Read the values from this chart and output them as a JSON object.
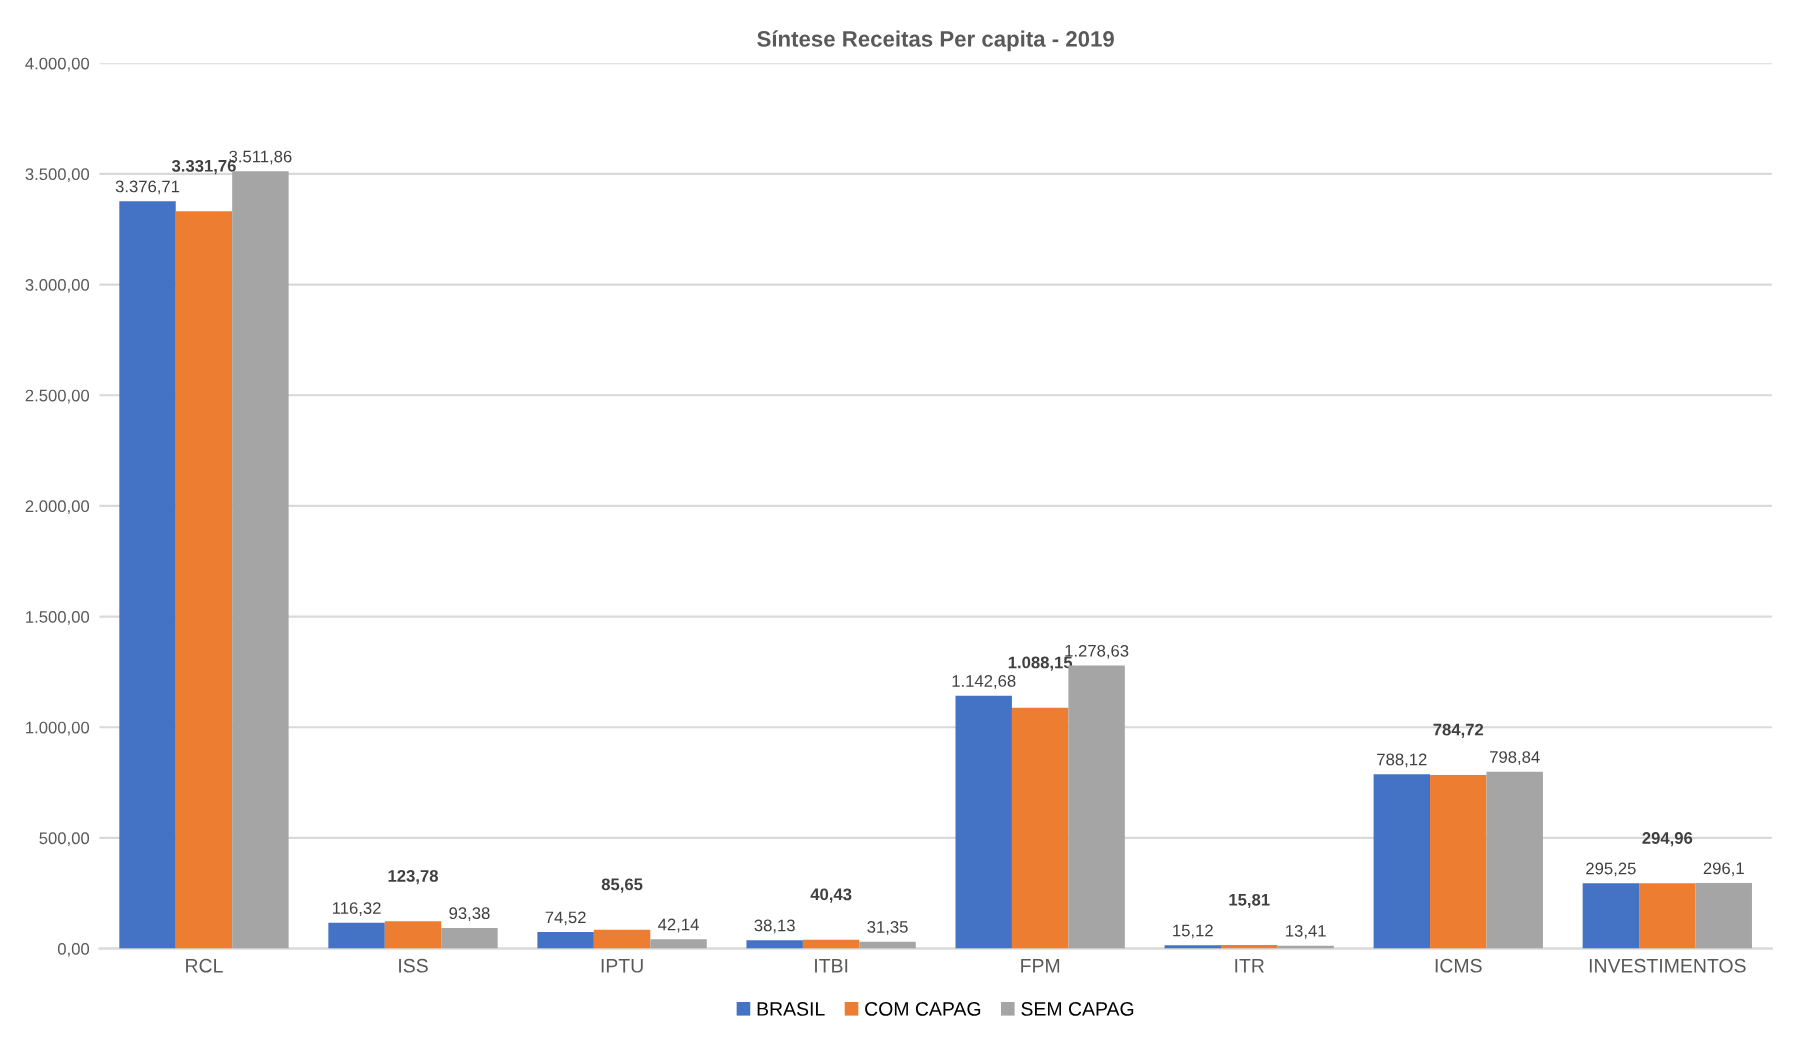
{
  "chart_data": {
    "type": "bar",
    "title": "Síntese Receitas Per capita - 2019",
    "categories": [
      "RCL",
      "ISS",
      "IPTU",
      "ITBI",
      "FPM",
      "ITR",
      "ICMS",
      "INVESTIMENTOS"
    ],
    "series": [
      {
        "name": "BRASIL",
        "color": "#4472c4",
        "values": [
          3376.71,
          116.32,
          74.52,
          38.13,
          1142.68,
          15.12,
          788.12,
          295.25
        ],
        "value_labels": [
          "3.376,71",
          "116,32",
          "74,52",
          "38,13",
          "1.142,68",
          "15,12",
          "788,12",
          "295,25"
        ]
      },
      {
        "name": "COM CAPAG",
        "color": "#ed7d31",
        "values": [
          3331.76,
          123.78,
          85.65,
          40.43,
          1088.15,
          15.81,
          784.72,
          294.96
        ],
        "value_labels": [
          "3.331,76",
          "123,78",
          "85,65",
          "40,43",
          "1.088,15",
          "15,81",
          "784,72",
          "294,96"
        ]
      },
      {
        "name": "SEM CAPAG",
        "color": "#a5a5a5",
        "values": [
          3511.86,
          93.38,
          42.14,
          31.35,
          1278.63,
          13.41,
          798.84,
          296.1
        ],
        "value_labels": [
          "3.511,86",
          "93,38",
          "42,14",
          "31,35",
          "1.278,63",
          "13,41",
          "798,84",
          "296,1"
        ]
      }
    ],
    "ylim": [
      0,
      4000
    ],
    "yticks": [
      {
        "value": 0,
        "label": "0,00"
      },
      {
        "value": 500,
        "label": "500,00"
      },
      {
        "value": 1000,
        "label": "1.000,00"
      },
      {
        "value": 1500,
        "label": "1.500,00"
      },
      {
        "value": 2000,
        "label": "2.000,00"
      },
      {
        "value": 2500,
        "label": "2.500,00"
      },
      {
        "value": 3000,
        "label": "3.000,00"
      },
      {
        "value": 3500,
        "label": "3.500,00"
      },
      {
        "value": 4000,
        "label": "4.000,00"
      }
    ],
    "grid": "y",
    "legend": "bottom"
  }
}
